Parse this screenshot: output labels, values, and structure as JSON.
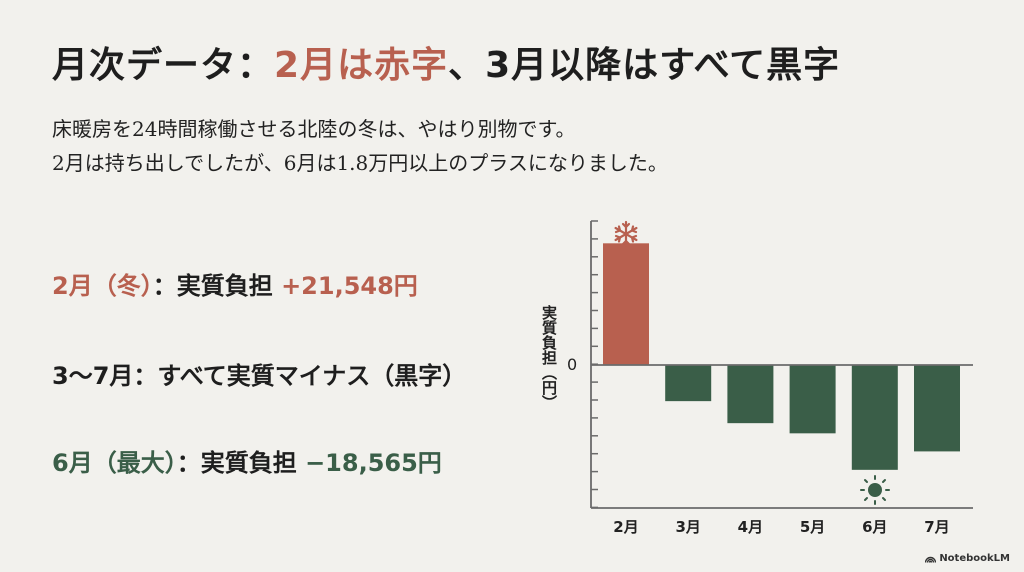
{
  "slide": {
    "title_prefix": "月次データ：",
    "title_red": "2月は赤字",
    "title_suffix": "、3月以降はすべて黒字",
    "subtitle_lines": [
      "床暖房を24時間稼働させる北陸の冬は、やはり別物です。",
      "2月は持ち出しでしたが、6月は1.8万円以上のプラスになりました。"
    ],
    "points": [
      {
        "lead": "2月（冬）",
        "sep": "：実質負担 ",
        "value": "+21,548円"
      },
      {
        "lead": "3〜7月",
        "sep": "：すべて実質マイナス（黒字）",
        "value": ""
      },
      {
        "lead": "6月（最大）",
        "sep": "：実質負担 ",
        "value": "−18,565円"
      }
    ],
    "brand": "NotebookLM"
  },
  "colors": {
    "background": "#f2f1ed",
    "red": "#b8604f",
    "green": "#3a5e48",
    "axis": "#6b6b6b",
    "text": "#1e1e1e"
  },
  "chart_data": {
    "type": "bar",
    "title": "",
    "xlabel": "",
    "ylabel": "実質負担（円）",
    "categories": [
      "2月",
      "3月",
      "4月",
      "5月",
      "6月",
      "7月"
    ],
    "values": [
      21548,
      -6400,
      -10300,
      -12100,
      -18565,
      -15300
    ],
    "y_tick_labels": [
      "0"
    ],
    "ylim": [
      -25500,
      25500
    ],
    "grid": false,
    "legend": null,
    "annotations": [
      {
        "category": "2月",
        "icon": "snowflake-icon"
      },
      {
        "category": "6月",
        "icon": "sun-icon"
      }
    ],
    "bar_colors": {
      "positive": "#b8604f",
      "negative": "#3a5e48"
    }
  }
}
